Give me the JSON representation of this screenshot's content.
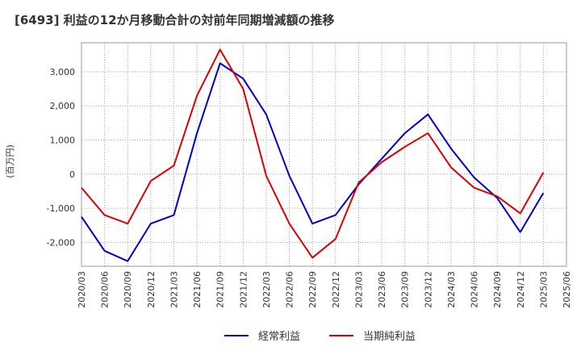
{
  "chart_data": {
    "type": "line",
    "title": "[6493]  利益の12か月移動合計の対前年同期増減額の推移",
    "ylabel": "(百万円)",
    "xlabel": "",
    "ylim": [
      -2700,
      3850
    ],
    "yticks": [
      3000,
      2000,
      1000,
      0,
      -1000,
      -2000
    ],
    "ytick_labels": [
      "3,000",
      "2,000",
      "1,000",
      "0",
      "-1,000",
      "-2,000"
    ],
    "categories": [
      "2020/03",
      "2020/06",
      "2020/09",
      "2020/12",
      "2021/03",
      "2021/06",
      "2021/09",
      "2021/12",
      "2022/03",
      "2022/06",
      "2022/09",
      "2022/12",
      "2023/03",
      "2023/06",
      "2023/09",
      "2023/12",
      "2024/03",
      "2024/06",
      "2024/09",
      "2024/12",
      "2025/03",
      "2025/06"
    ],
    "grid": true,
    "legend_position": "bottom",
    "series": [
      {
        "name": "経常利益",
        "color": "#0000cc",
        "values": [
          -1250,
          -2250,
          -2550,
          -1450,
          -1200,
          1200,
          3250,
          2800,
          1750,
          -50,
          -1450,
          -1200,
          -300,
          450,
          1200,
          1750,
          750,
          -100,
          -700,
          -1700,
          -550,
          null
        ]
      },
      {
        "name": "当期純利益",
        "color": "#dd0000",
        "values": [
          -400,
          -1200,
          -1450,
          -200,
          250,
          2300,
          3650,
          2500,
          -50,
          -1450,
          -2450,
          -1900,
          -250,
          350,
          800,
          1200,
          200,
          -400,
          -650,
          -1150,
          50,
          null
        ]
      }
    ]
  }
}
